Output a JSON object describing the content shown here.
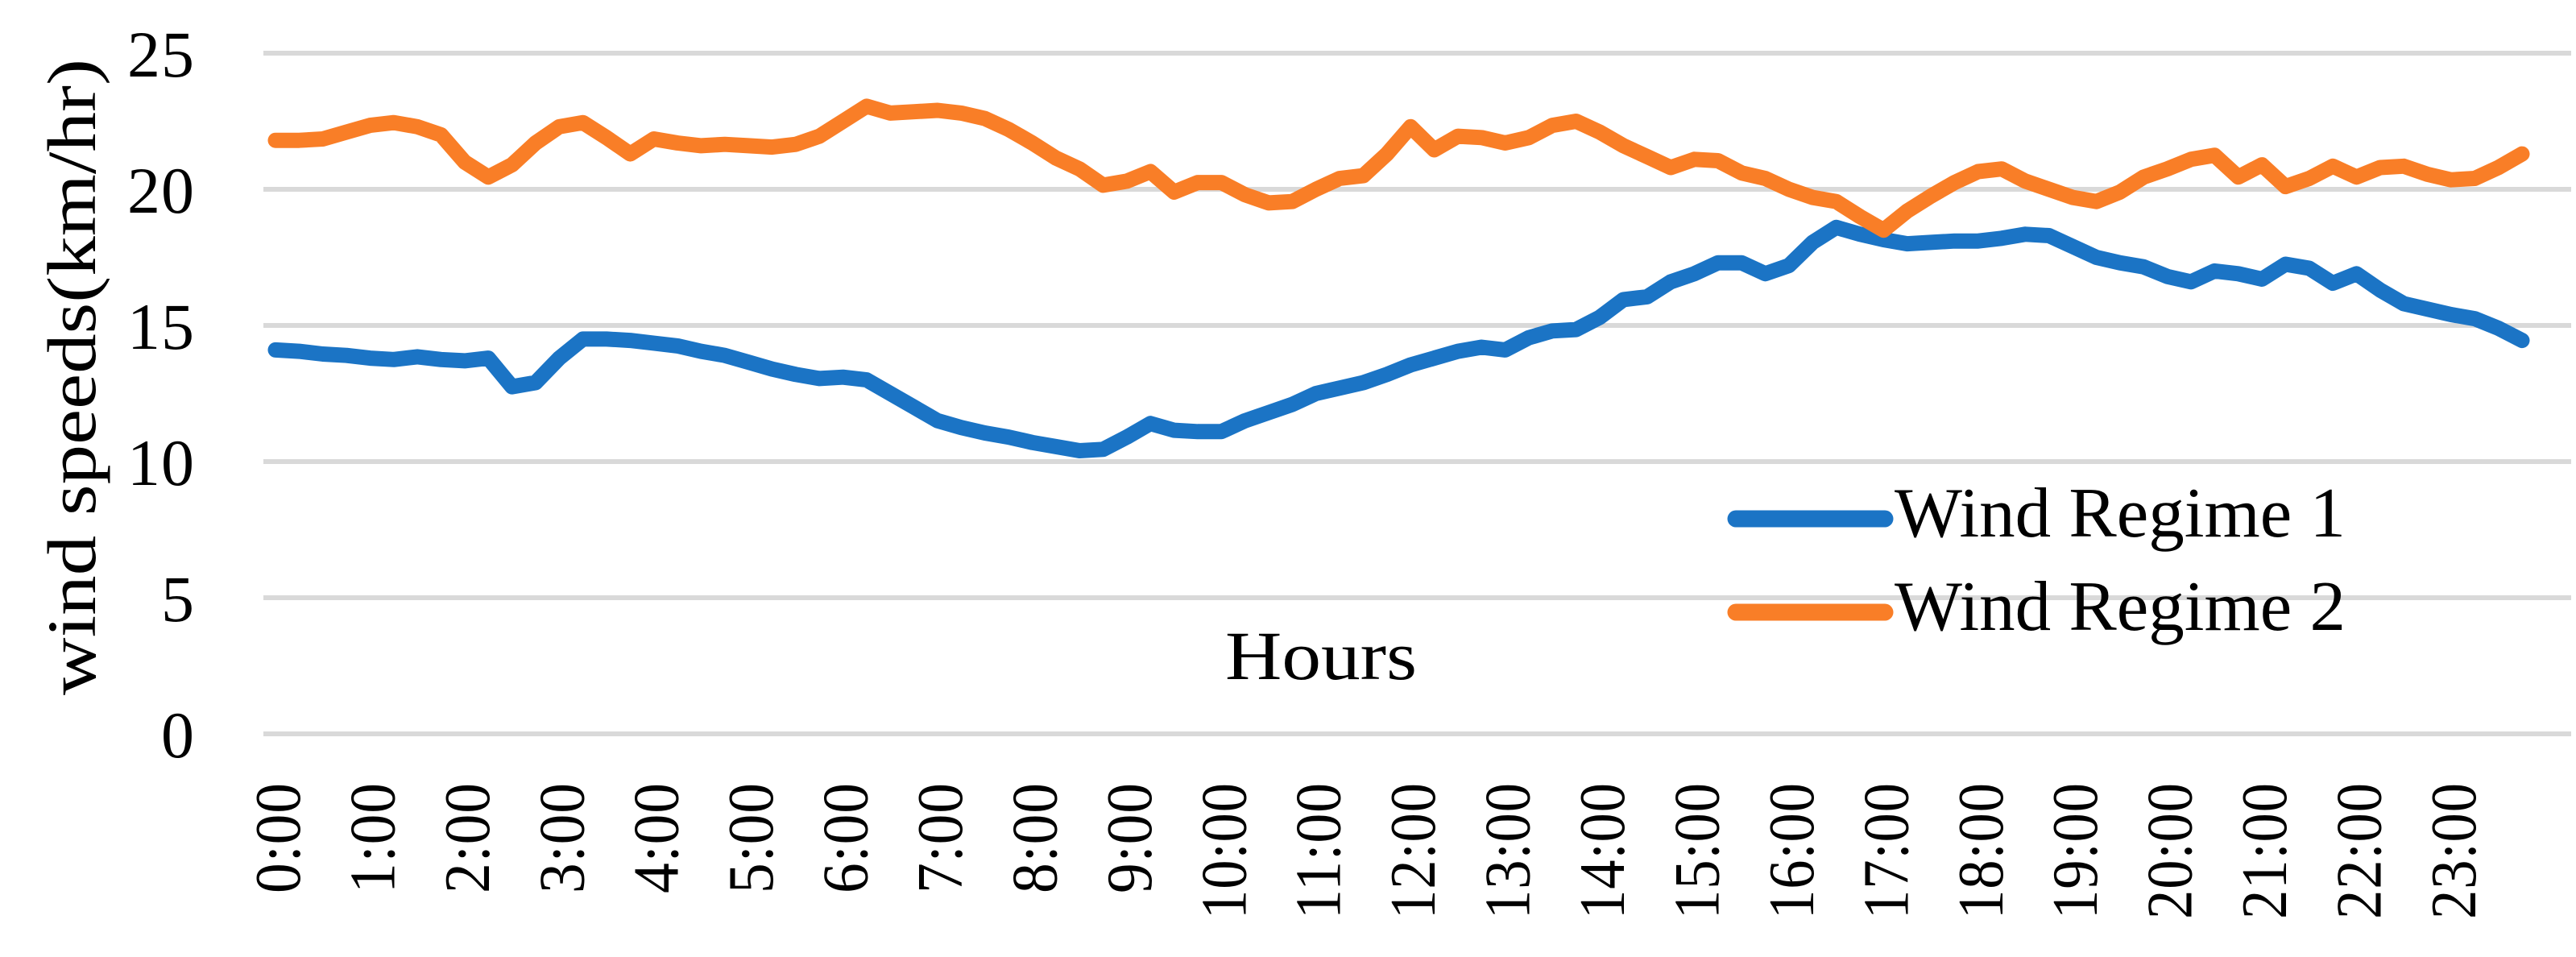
{
  "figure": {
    "background": "#ffffff",
    "text_color": "#000000"
  },
  "chart_data": {
    "type": "line",
    "title": "",
    "xlabel": "Hours",
    "ylabel": "wind speeds(km/hr)",
    "x_tick_labels": [
      "0:00",
      "1:00",
      "2:00",
      "3:00",
      "4:00",
      "5:00",
      "6:00",
      "7:00",
      "8:00",
      "9:00",
      "10:00",
      "11:00",
      "12:00",
      "13:00",
      "14:00",
      "15:00",
      "16:00",
      "17:00",
      "18:00",
      "19:00",
      "20:00",
      "21:00",
      "22:00",
      "23:00"
    ],
    "y_ticks": [
      0,
      5,
      10,
      15,
      20,
      25
    ],
    "ylim": [
      0,
      25
    ],
    "grid": "horizontal",
    "gridline_color": "#D9D9D9",
    "legend_position": "inside-right",
    "sample_interval_minutes": 15,
    "series": [
      {
        "name": "Wind Regime 1",
        "color": "#1B74C5",
        "values": [
          14.1,
          14.05,
          13.95,
          13.9,
          13.8,
          13.75,
          13.85,
          13.75,
          13.7,
          13.8,
          12.75,
          12.9,
          13.8,
          14.5,
          14.5,
          14.45,
          14.35,
          14.25,
          14.05,
          13.9,
          13.65,
          13.4,
          13.2,
          13.05,
          13.1,
          13.0,
          12.5,
          12.0,
          11.5,
          11.25,
          11.05,
          10.9,
          10.7,
          10.55,
          10.4,
          10.45,
          10.9,
          11.4,
          11.15,
          11.1,
          11.1,
          11.5,
          11.8,
          12.1,
          12.5,
          12.7,
          12.9,
          13.2,
          13.55,
          13.8,
          14.05,
          14.2,
          14.1,
          14.55,
          14.8,
          14.85,
          15.3,
          15.95,
          16.05,
          16.6,
          16.9,
          17.3,
          17.3,
          16.9,
          17.2,
          18.05,
          18.6,
          18.35,
          18.15,
          18.0,
          18.05,
          18.1,
          18.1,
          18.2,
          18.35,
          18.3,
          17.9,
          17.5,
          17.3,
          17.15,
          16.8,
          16.6,
          17.0,
          16.9,
          16.7,
          17.25,
          17.1,
          16.55,
          16.9,
          16.3,
          15.8,
          15.6,
          15.4,
          15.25,
          14.9,
          14.45
        ]
      },
      {
        "name": "Wind Regime 2",
        "color": "#F97E27",
        "values": [
          21.8,
          21.8,
          21.85,
          22.1,
          22.35,
          22.45,
          22.3,
          22.0,
          21.0,
          20.45,
          20.9,
          21.7,
          22.3,
          22.45,
          21.9,
          21.3,
          21.85,
          21.7,
          21.6,
          21.65,
          21.6,
          21.55,
          21.65,
          21.95,
          22.5,
          23.05,
          22.8,
          22.85,
          22.9,
          22.8,
          22.6,
          22.2,
          21.7,
          21.15,
          20.75,
          20.15,
          20.3,
          20.65,
          19.9,
          20.25,
          20.25,
          19.8,
          19.5,
          19.55,
          20.0,
          20.4,
          20.5,
          21.3,
          22.3,
          21.45,
          21.95,
          21.9,
          21.7,
          21.9,
          22.35,
          22.5,
          22.1,
          21.6,
          21.2,
          20.8,
          21.1,
          21.05,
          20.6,
          20.4,
          20.0,
          19.7,
          19.55,
          19.0,
          18.5,
          19.2,
          19.75,
          20.25,
          20.65,
          20.75,
          20.3,
          20.0,
          19.7,
          19.55,
          19.9,
          20.45,
          20.75,
          21.1,
          21.25,
          20.45,
          20.9,
          20.1,
          20.4,
          20.85,
          20.45,
          20.8,
          20.85,
          20.55,
          20.35,
          20.4,
          20.8,
          21.3
        ]
      }
    ]
  }
}
